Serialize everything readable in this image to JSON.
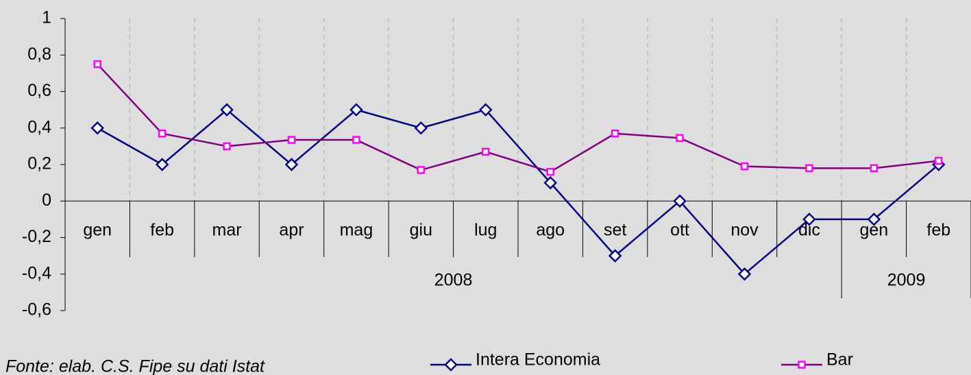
{
  "chart_data": {
    "type": "line",
    "categories": [
      "gen",
      "feb",
      "mar",
      "apr",
      "mag",
      "giu",
      "lug",
      "ago",
      "set",
      "ott",
      "nov",
      "dic",
      "gen",
      "feb"
    ],
    "groups": [
      {
        "label": "2008",
        "size": 12
      },
      {
        "label": "2009",
        "size": 2
      }
    ],
    "series": [
      {
        "name": "Intera Economia",
        "color": "#000080",
        "marker": "diamond",
        "values": [
          0.4,
          0.2,
          0.5,
          0.2,
          0.5,
          0.4,
          0.5,
          0.1,
          -0.3,
          0,
          -0.4,
          -0.1,
          -0.1,
          0.2
        ]
      },
      {
        "name": "Bar",
        "color": "#800080",
        "marker": "square",
        "marker_color": "#ff00ff",
        "values": [
          0.75,
          0.37,
          0.3,
          0.335,
          0.335,
          0.17,
          0.27,
          0.16,
          0.37,
          0.345,
          0.19,
          0.18,
          0.18,
          0.22
        ]
      }
    ],
    "ylim": [
      -0.6,
      1
    ],
    "yticks": [
      {
        "value": -0.6,
        "label": "-0,6"
      },
      {
        "value": -0.4,
        "label": "-0,4"
      },
      {
        "value": -0.2,
        "label": "-0,2"
      },
      0,
      {
        "value": 0.2,
        "label": "0,2"
      },
      {
        "value": 0.4,
        "label": "0,4"
      },
      {
        "value": 0.6,
        "label": "0,6"
      },
      {
        "value": 0.8,
        "label": "0,8"
      },
      1
    ],
    "vertical_grid": true,
    "legend": "bottom",
    "source": "Fonte: elab. C.S. Fipe su dati Istat"
  }
}
